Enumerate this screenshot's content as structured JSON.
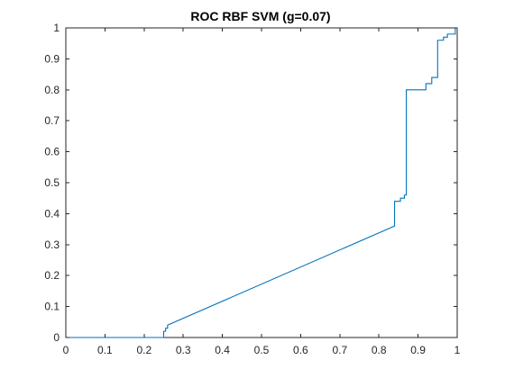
{
  "chart_data": {
    "type": "line",
    "title": "ROC RBF SVM (g=0.07)",
    "xlabel": "",
    "ylabel": "",
    "xlim": [
      0,
      1
    ],
    "ylim": [
      0,
      1
    ],
    "grid": false,
    "x_ticks": [
      "0",
      "0.1",
      "0.2",
      "0.3",
      "0.4",
      "0.5",
      "0.6",
      "0.7",
      "0.8",
      "0.9",
      "1"
    ],
    "y_ticks": [
      "0",
      "0.1",
      "0.2",
      "0.3",
      "0.4",
      "0.5",
      "0.6",
      "0.7",
      "0.8",
      "0.9",
      "1"
    ],
    "series": [
      {
        "color": "#0072bd",
        "x": [
          0,
          0.25,
          0.25,
          0.255,
          0.255,
          0.26,
          0.26,
          0.84,
          0.84,
          0.855,
          0.855,
          0.865,
          0.865,
          0.87,
          0.87,
          0.92,
          0.92,
          0.935,
          0.935,
          0.95,
          0.95,
          0.965,
          0.965,
          0.975,
          0.975,
          0.995,
          0.995,
          1.0
        ],
        "y": [
          0,
          0,
          0.02,
          0.02,
          0.03,
          0.03,
          0.04,
          0.36,
          0.44,
          0.44,
          0.45,
          0.45,
          0.46,
          0.46,
          0.8,
          0.8,
          0.82,
          0.82,
          0.84,
          0.84,
          0.96,
          0.96,
          0.97,
          0.97,
          0.98,
          0.98,
          1.0,
          1.0
        ]
      }
    ]
  },
  "colors": {
    "line": "#0072bd",
    "axes": "#262626",
    "background": "#ffffff"
  }
}
